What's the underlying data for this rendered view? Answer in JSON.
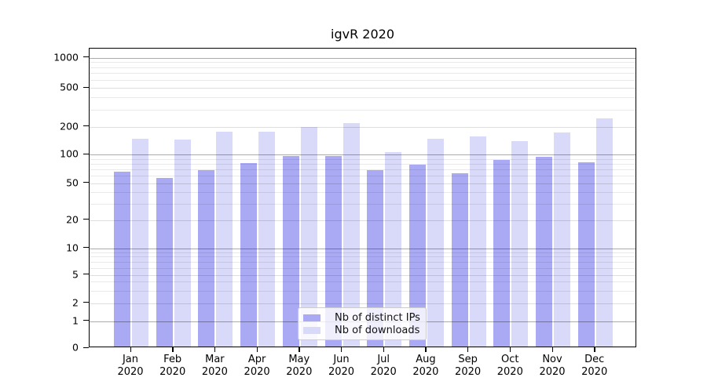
{
  "title": "igvR 2020",
  "chart_data": {
    "type": "bar",
    "title": "igvR 2020",
    "categories": [
      "Jan 2020",
      "Feb 2020",
      "Mar 2020",
      "Apr 2020",
      "May 2020",
      "Jun 2020",
      "Jul 2020",
      "Aug 2020",
      "Sep 2020",
      "Oct 2020",
      "Nov 2020",
      "Dec 2020"
    ],
    "series": [
      {
        "name": "Nb of distinct IPs",
        "color": "#a9a9f4",
        "values": [
          63,
          55,
          66,
          78,
          92,
          92,
          66,
          76,
          61,
          84,
          91,
          80
        ]
      },
      {
        "name": "Nb of downloads",
        "color": "#d9d9f9",
        "values": [
          142,
          139,
          169,
          170,
          189,
          211,
          103,
          142,
          152,
          134,
          166,
          233
        ]
      }
    ],
    "xlabel": "",
    "ylabel": "",
    "yscale": "symlog",
    "yticks": [
      0,
      1,
      2,
      5,
      10,
      20,
      50,
      100,
      200,
      500,
      1000
    ],
    "minor_gridlines": [
      3,
      4,
      6,
      7,
      8,
      9,
      30,
      40,
      60,
      70,
      80,
      90,
      300,
      400,
      600,
      700,
      800,
      900
    ],
    "ylim": [
      0,
      1200
    ],
    "grid": true,
    "legend_position": "lower center",
    "background_color": "#ffffff",
    "axis_color": "#000000"
  }
}
